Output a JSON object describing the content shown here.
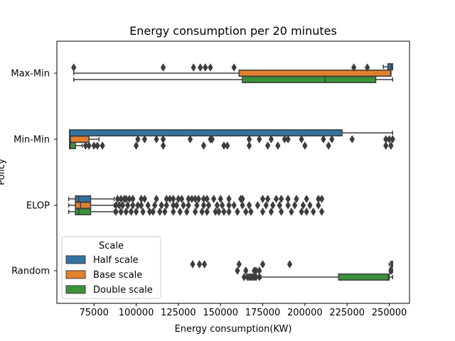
{
  "chart_data": {
    "type": "boxplot",
    "orientation": "horizontal",
    "title": "Energy consumption per 20 minutes",
    "xlabel": "Energy consumption(KW)",
    "ylabel": "Policy",
    "xlim": [
      53000,
      262000
    ],
    "xticks": [
      75000,
      100000,
      125000,
      150000,
      175000,
      200000,
      225000,
      250000
    ],
    "xtick_labels": [
      "75000",
      "100000",
      "125000",
      "150000",
      "175000",
      "200000",
      "225000",
      "250000"
    ],
    "categories": [
      "Max-Min",
      "Min-Min",
      "ELOP",
      "Random"
    ],
    "legend": {
      "title": "Scale",
      "position": "lower-left",
      "entries": [
        "Half scale",
        "Base scale",
        "Double scale"
      ]
    },
    "grid": false,
    "series": [
      {
        "name": "Half scale",
        "color": "#3274a1",
        "boxes": [
          {
            "category": "Max-Min",
            "whislo": 246500,
            "q1": 249200,
            "med": 251200,
            "q3": 252000,
            "whishi": 252000,
            "fliers": []
          },
          {
            "category": "Min-Min",
            "whislo": 60500,
            "q1": 60500,
            "med": 60600,
            "q3": 222000,
            "whishi": 252000,
            "fliers": []
          },
          {
            "category": "ELOP",
            "whislo": 60000,
            "q1": 64000,
            "med": 66000,
            "q3": 73000,
            "whishi": 87000,
            "fliers": [
              89000,
              91000,
              93000,
              94000,
              96000,
              98000,
              103000,
              105000,
              112000,
              118000,
              120000,
              122000,
              125000,
              127000,
              131000,
              133000,
              135000,
              137000,
              140000,
              142000,
              146000,
              150000,
              155000,
              162000,
              163000,
              175000,
              178000,
              183000,
              186000,
              190000,
              195000,
              201000,
              208000,
              210000
            ]
          },
          {
            "category": "Random",
            "whislo": 250000,
            "q1": 251000,
            "med": 251500,
            "q3": 252000,
            "whishi": 252000,
            "fliers": [
              133500,
              137500,
              140500,
              161000,
              175000,
              191000
            ]
          }
        ]
      },
      {
        "name": "Base scale",
        "color": "#e1812c",
        "boxes": [
          {
            "category": "Max-Min",
            "whislo": 63000,
            "q1": 161000,
            "med": 250800,
            "q3": 251000,
            "whishi": 251000,
            "fliers": []
          },
          {
            "category": "Min-Min",
            "whislo": 60500,
            "q1": 60500,
            "med": 61000,
            "q3": 72000,
            "whishi": 78000,
            "fliers": [
              101000,
              105000,
              112000,
              116000,
              132000,
              144000,
              145000,
              167000,
              173000,
              180000,
              188000,
              190000,
              198000,
              211000,
              216000,
              228000,
              248000,
              250000,
              252000
            ]
          },
          {
            "category": "ELOP",
            "whislo": 60000,
            "q1": 64000,
            "med": 67000,
            "q3": 73000,
            "whishi": 87000,
            "fliers": [
              88000,
              90000,
              92000,
              95000,
              98000,
              101000,
              103000,
              107000,
              111000,
              115000,
              118000,
              122000,
              124000,
              128000,
              131000,
              136000,
              140000,
              143000,
              148000,
              151000,
              155000,
              158000,
              163000,
              167000,
              172000,
              177000,
              181000,
              185000,
              190000,
              194000,
              199000,
              203000,
              208000
            ]
          },
          {
            "category": "Random",
            "whislo": 250000,
            "q1": 250500,
            "med": 251000,
            "q3": 251500,
            "whishi": 252000,
            "fliers": [
              160000,
              165000,
              170000,
              171000,
              173000
            ]
          }
        ]
      },
      {
        "name": "Double scale",
        "color": "#3a923a",
        "boxes": [
          {
            "category": "Max-Min",
            "whislo": 63000,
            "q1": 163000,
            "med": 212000,
            "q3": 242000,
            "whishi": 252000,
            "fliers": []
          },
          {
            "category": "Min-Min",
            "whislo": 60500,
            "q1": 60500,
            "med": 61000,
            "q3": 64000,
            "whishi": 68000,
            "fliers": [
              70000,
              72000,
              75000,
              77000,
              80000,
              100000,
              116000,
              140000,
              152000,
              154000,
              167000,
              178000,
              184000,
              200000,
              214000,
              248000,
              251000
            ]
          },
          {
            "category": "ELOP",
            "whislo": 60000,
            "q1": 64000,
            "med": 66000,
            "q3": 73000,
            "whishi": 87000,
            "fliers": [
              88000,
              91000,
              94000,
              97000,
              100000,
              104000,
              108000,
              110000,
              114000,
              117000,
              122000,
              126000,
              130000,
              135000,
              139000,
              142000,
              147000,
              149000,
              152000,
              155000,
              160000,
              165000,
              168000,
              175000,
              180000,
              186000,
              192000,
              198000,
              201000,
              205000,
              210000
            ]
          },
          {
            "category": "Random",
            "whislo": 174000,
            "q1": 220000,
            "med": 249500,
            "q3": 250000,
            "whishi": 252000,
            "fliers": [
              164000,
              166000,
              167000,
              168000,
              169000,
              170000,
              171000,
              173000
            ]
          }
        ]
      }
    ],
    "single_outliers": [
      {
        "category": "Max-Min",
        "series": "Half scale",
        "values": [
          63000,
          116000,
          134000,
          138000,
          141000,
          144000,
          158000,
          229000,
          237000
        ]
      }
    ]
  }
}
